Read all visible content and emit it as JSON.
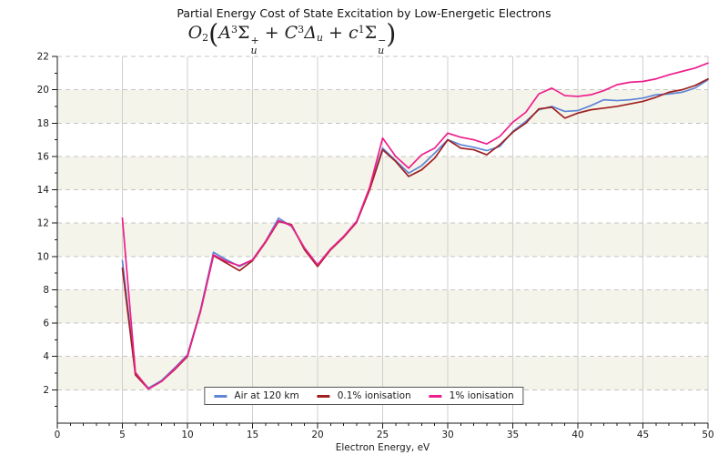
{
  "chart_data": {
    "type": "line",
    "title": "Partial Energy Cost of State Excitation by Low-Energetic Electrons",
    "subtitle_plain": "O2(A3Σu+ + C3Δu + c1Σu−)",
    "subtitle_tokens": [
      {
        "t": "O",
        "k": "base",
        "it": true
      },
      {
        "t": "2",
        "k": "sub",
        "it": false
      },
      {
        "t": "(",
        "k": "par",
        "it": false
      },
      {
        "t": "A",
        "k": "base",
        "it": true
      },
      {
        "t": "3",
        "k": "sup",
        "it": false
      },
      {
        "t": "Σ",
        "k": "base",
        "it": false
      },
      {
        "k": "ss",
        "sup": "+",
        "sub": "u"
      },
      {
        "t": "+",
        "k": "plus",
        "it": false
      },
      {
        "t": "C",
        "k": "base",
        "it": true
      },
      {
        "t": "3",
        "k": "sup",
        "it": false
      },
      {
        "t": "Δ",
        "k": "base",
        "it": true
      },
      {
        "t": "u",
        "k": "sub",
        "it": true
      },
      {
        "t": "+",
        "k": "plus",
        "it": false
      },
      {
        "t": "c",
        "k": "base",
        "it": true
      },
      {
        "t": "1",
        "k": "sup",
        "it": false
      },
      {
        "t": "Σ",
        "k": "base",
        "it": false
      },
      {
        "k": "ss",
        "sup": "−",
        "sub": "u"
      },
      {
        "t": ")",
        "k": "par",
        "it": false
      }
    ],
    "xlabel": "Electron Energy, eV",
    "ylabel": "",
    "xlim": [
      0,
      50
    ],
    "ylim": [
      0,
      22
    ],
    "xticks": [
      0,
      5,
      10,
      15,
      20,
      25,
      30,
      35,
      40,
      45,
      50
    ],
    "yticks": [
      2,
      4,
      6,
      8,
      10,
      12,
      14,
      16,
      18,
      20,
      22
    ],
    "xtick_minor_step": 1,
    "ytick_minor_step": 1,
    "grid": {
      "horizontal": "dashed",
      "vertical": "solid"
    },
    "band_rows": [
      [
        2,
        4
      ],
      [
        6,
        8
      ],
      [
        10,
        12
      ],
      [
        14,
        16
      ],
      [
        18,
        20
      ]
    ],
    "legend_position": "lower center",
    "x": [
      5,
      6,
      7,
      8,
      9,
      10,
      11,
      12,
      13,
      14,
      15,
      16,
      17,
      18,
      19,
      20,
      21,
      22,
      23,
      24,
      25,
      26,
      27,
      28,
      29,
      30,
      31,
      32,
      33,
      34,
      35,
      36,
      37,
      38,
      39,
      40,
      41,
      42,
      43,
      44,
      45,
      46,
      47,
      48,
      49,
      50
    ],
    "series": [
      {
        "name": "Air at 120 km",
        "color": "#5e86d5",
        "values": [
          9.75,
          3.0,
          2.1,
          2.55,
          3.3,
          4.1,
          6.8,
          10.25,
          9.8,
          9.4,
          9.8,
          10.9,
          12.3,
          11.8,
          10.5,
          9.5,
          10.45,
          11.2,
          12.1,
          14.1,
          16.5,
          15.75,
          15.0,
          15.45,
          16.2,
          17.0,
          16.7,
          16.55,
          16.35,
          16.6,
          17.5,
          18.1,
          18.8,
          19.0,
          18.7,
          18.75,
          19.05,
          19.4,
          19.35,
          19.4,
          19.5,
          19.7,
          19.75,
          19.85,
          20.1,
          20.6
        ]
      },
      {
        "name": "0.1% ionisation",
        "color": "#a02020",
        "values": [
          9.3,
          2.9,
          2.05,
          2.5,
          3.2,
          4.0,
          6.7,
          10.05,
          9.6,
          9.15,
          9.75,
          10.85,
          12.1,
          11.9,
          10.4,
          9.4,
          10.4,
          11.15,
          12.05,
          14.0,
          16.4,
          15.7,
          14.8,
          15.2,
          15.9,
          17.0,
          16.5,
          16.4,
          16.1,
          16.7,
          17.45,
          18.0,
          18.85,
          18.95,
          18.3,
          18.6,
          18.8,
          18.9,
          19.0,
          19.15,
          19.3,
          19.55,
          19.85,
          20.0,
          20.25,
          20.65
        ]
      },
      {
        "name": "1% ionisation",
        "color": "#ee1e8c",
        "values": [
          12.3,
          3.05,
          2.05,
          2.5,
          3.25,
          4.05,
          6.7,
          10.1,
          9.7,
          9.45,
          9.8,
          10.9,
          12.15,
          11.85,
          10.5,
          9.5,
          10.45,
          11.2,
          12.1,
          14.15,
          17.1,
          16.0,
          15.3,
          16.1,
          16.5,
          17.4,
          17.15,
          17.0,
          16.75,
          17.2,
          18.05,
          18.65,
          19.75,
          20.1,
          19.65,
          19.6,
          19.7,
          19.95,
          20.3,
          20.45,
          20.5,
          20.65,
          20.9,
          21.1,
          21.3,
          21.6
        ]
      }
    ],
    "style": {
      "band_color": "#f5f4ea",
      "grid_h_color": "#c4c4c4",
      "grid_v_color": "#cfcfcf",
      "spine_color": "#1a1a1a",
      "text_color": "#1a1a1a",
      "legend_border_color": "#555555",
      "background": "#ffffff"
    }
  }
}
